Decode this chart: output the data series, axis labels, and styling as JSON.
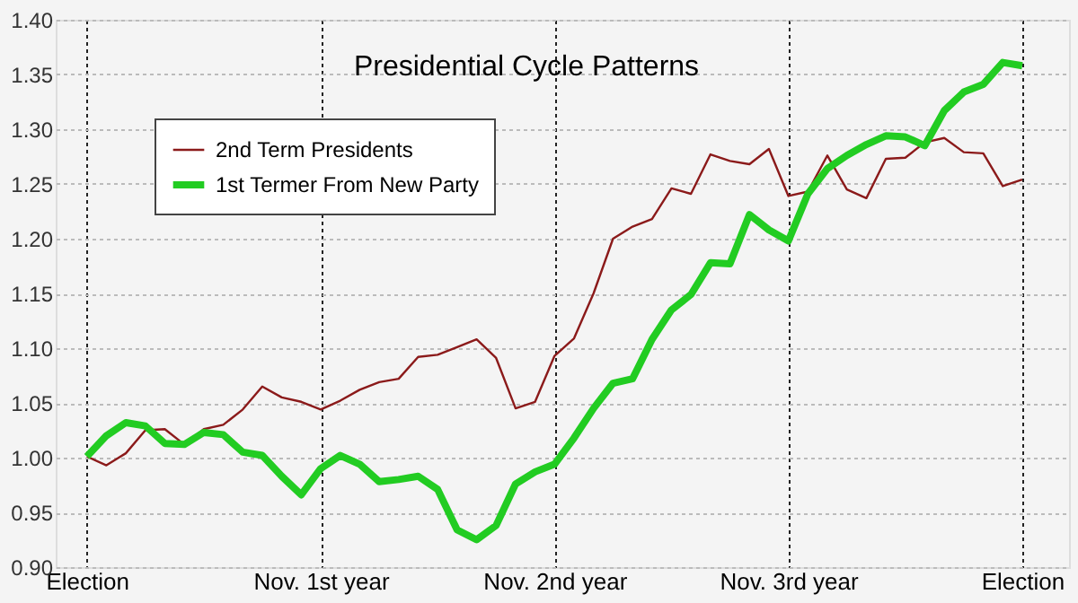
{
  "chart_data": {
    "type": "line",
    "title": "Presidential Cycle Patterns",
    "categories": [
      "Election",
      null,
      null,
      null,
      null,
      null,
      null,
      null,
      null,
      null,
      null,
      null,
      "Nov. 1st year",
      null,
      null,
      null,
      null,
      null,
      null,
      null,
      null,
      null,
      null,
      null,
      "Nov. 2nd year",
      null,
      null,
      null,
      null,
      null,
      null,
      null,
      null,
      null,
      null,
      null,
      "Nov. 3rd year",
      null,
      null,
      null,
      null,
      null,
      null,
      null,
      null,
      null,
      null,
      null,
      "Election"
    ],
    "ylim": [
      0.9,
      1.4
    ],
    "yticks": [
      {
        "value": 0.9,
        "label": "0.90"
      },
      0.95,
      {
        "value": 1,
        "label": "1.00"
      },
      1.05,
      {
        "value": 1.1,
        "label": "1.10"
      },
      1.15,
      {
        "value": 1.2,
        "label": "1.20"
      },
      1.25,
      {
        "value": 1.3,
        "label": "1.30"
      },
      1.35,
      {
        "value": 1.4,
        "label": "1.40"
      }
    ],
    "grid": true,
    "legend": "top left",
    "marker": "none",
    "line_style": "solid",
    "series": [
      {
        "name": "2nd Term Presidents",
        "color": "#8b1a1a",
        "values": [
          1.001,
          0.993,
          1.004,
          1.025,
          1.026,
          1.012,
          1.026,
          1.03,
          1.044,
          1.065,
          1.055,
          1.051,
          1.044,
          1.052,
          1.062,
          1.069,
          1.072,
          1.092,
          1.094,
          1.101,
          1.108,
          1.091,
          1.045,
          1.051,
          1.093,
          1.109,
          1.15,
          1.2,
          1.211,
          1.218,
          1.246,
          1.241,
          1.277,
          1.271,
          1.268,
          1.282,
          1.239,
          1.243,
          1.276,
          1.245,
          1.237,
          1.273,
          1.274,
          1.288,
          1.292,
          1.279,
          1.278,
          1.248,
          1.254
        ]
      },
      {
        "name": "1st Termer From New Party",
        "color": "#22cc22",
        "values": [
          1.001,
          1.02,
          1.032,
          1.029,
          1.013,
          1.012,
          1.023,
          1.021,
          1.005,
          1.002,
          0.983,
          0.966,
          0.99,
          1.002,
          0.994,
          0.978,
          0.98,
          0.983,
          0.971,
          0.934,
          0.925,
          0.938,
          0.976,
          0.987,
          0.994,
          1.018,
          1.045,
          1.068,
          1.072,
          1.108,
          1.135,
          1.149,
          1.178,
          1.177,
          1.222,
          1.208,
          1.198,
          1.241,
          1.264,
          1.276,
          1.286,
          1.294,
          1.293,
          1.285,
          1.317,
          1.334,
          1.341,
          1.361,
          1.358
        ]
      }
    ]
  }
}
